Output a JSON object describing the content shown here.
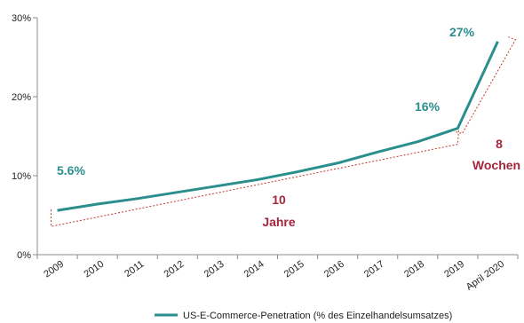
{
  "colors": {
    "series": "#2a8f8c",
    "accent": "#a3263b",
    "axis": "#8c8c8c",
    "bracket": "#c0392b"
  },
  "chart_data": {
    "type": "line",
    "title": "",
    "xlabel": "",
    "ylabel": "",
    "categories": [
      "2009",
      "2010",
      "2011",
      "2012",
      "2013",
      "2014",
      "2015",
      "2016",
      "2017",
      "2018",
      "2019",
      "April 2020"
    ],
    "ylim": [
      0,
      30
    ],
    "yticks": [
      "0%",
      "10%",
      "20%",
      "30%"
    ],
    "grid": false,
    "legend_position": "bottom",
    "series": [
      {
        "name": "US-E-Commerce-Penetration  (% des Einzelhandelsumsatzes)",
        "values": [
          5.6,
          6.4,
          7.1,
          7.9,
          8.7,
          9.5,
          10.5,
          11.6,
          13.0,
          14.3,
          16.0,
          27.0
        ]
      }
    ],
    "annotations": {
      "start_label": "5.6%",
      "pre_label": "16%",
      "end_label": "27%",
      "years_number": "10",
      "years_word": "Jahre",
      "weeks_number": "8",
      "weeks_word": "Wochen"
    }
  }
}
